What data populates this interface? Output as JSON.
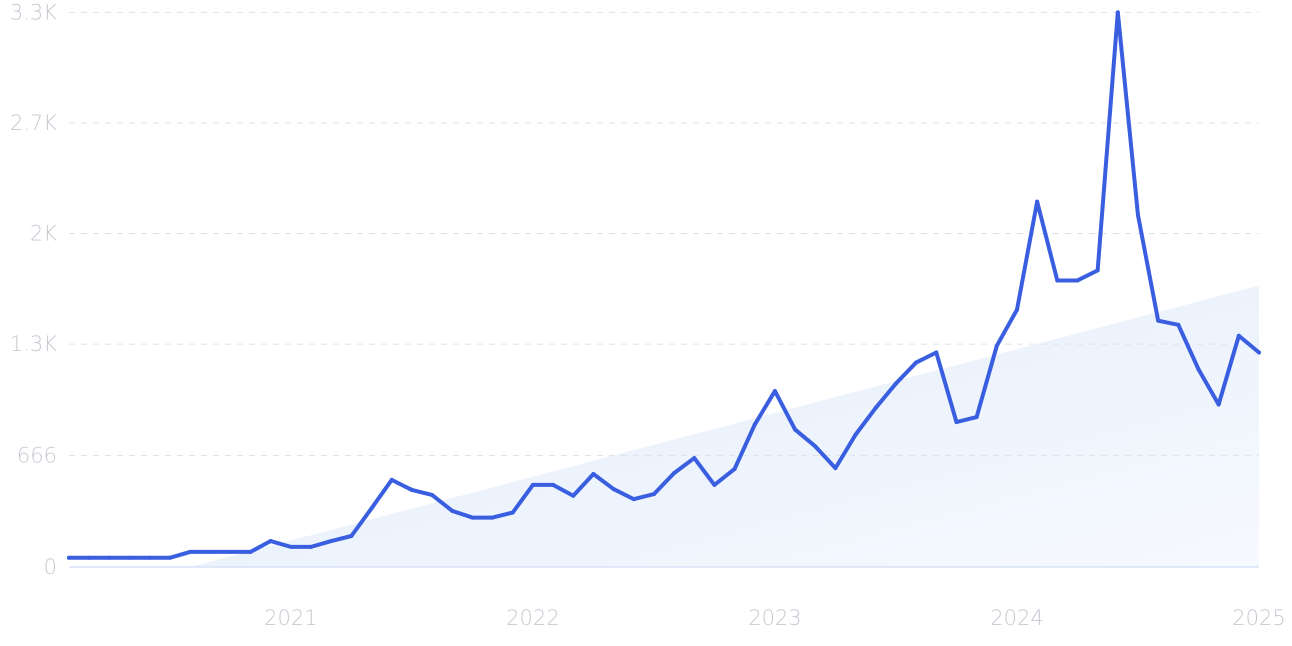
{
  "chart_data": {
    "type": "line",
    "title": "",
    "xlabel": "",
    "ylabel": "",
    "grid": true,
    "ylim": [
      0,
      3300
    ],
    "xlim": [
      "2020-02",
      "2025-01"
    ],
    "y_ticks": [
      {
        "value": 0,
        "label": "0"
      },
      {
        "value": 666,
        "label": "666"
      },
      {
        "value": 1330,
        "label": "1.3K"
      },
      {
        "value": 1990,
        "label": "2K"
      },
      {
        "value": 2650,
        "label": "2.7K"
      },
      {
        "value": 3310,
        "label": "3.3K"
      }
    ],
    "x_ticks": [
      {
        "value": "2021-01",
        "label": "2021"
      },
      {
        "value": "2022-01",
        "label": "2022"
      },
      {
        "value": "2023-01",
        "label": "2023"
      },
      {
        "value": "2024-01",
        "label": "2024"
      },
      {
        "value": "2025-01",
        "label": "2025"
      }
    ],
    "colors": {
      "line": "#3a5ee0",
      "trend_fill_start": "#e3edfb",
      "trend_fill_end": "#f6f9fe",
      "grid": "#dfe1e7",
      "baseline": "#d8e2f5",
      "tick_text": "#c6c9d2"
    },
    "series": [
      {
        "x": [
          "2020-02",
          "2020-03",
          "2020-04",
          "2020-05",
          "2020-06",
          "2020-07",
          "2020-08",
          "2020-09",
          "2020-10",
          "2020-11",
          "2020-12",
          "2021-01",
          "2021-02",
          "2021-03",
          "2021-04",
          "2021-05",
          "2021-06",
          "2021-07",
          "2021-08",
          "2021-09",
          "2021-10",
          "2021-11",
          "2021-12",
          "2022-01",
          "2022-02",
          "2022-03",
          "2022-04",
          "2022-05",
          "2022-06",
          "2022-07",
          "2022-08",
          "2022-09",
          "2022-10",
          "2022-11",
          "2022-12",
          "2023-01",
          "2023-02",
          "2023-03",
          "2023-04",
          "2023-05",
          "2023-06",
          "2023-07",
          "2023-08",
          "2023-09",
          "2023-10",
          "2023-11",
          "2023-12",
          "2024-01",
          "2024-02",
          "2024-03",
          "2024-04",
          "2024-05",
          "2024-06",
          "2024-07",
          "2024-08",
          "2024-09",
          "2024-10",
          "2024-11",
          "2024-12",
          "2025-01"
        ],
        "values": [
          55,
          55,
          55,
          55,
          55,
          55,
          90,
          90,
          90,
          90,
          155,
          120,
          120,
          155,
          185,
          350,
          520,
          460,
          430,
          335,
          295,
          295,
          325,
          490,
          490,
          425,
          555,
          465,
          405,
          435,
          560,
          650,
          490,
          585,
          850,
          1050,
          820,
          720,
          590,
          790,
          950,
          1095,
          1220,
          1280,
          865,
          895,
          1320,
          1535,
          2180,
          1710,
          1710,
          1770,
          3310,
          2100,
          1470,
          1445,
          1180,
          970,
          1380,
          1280
        ]
      }
    ],
    "trend": {
      "start": {
        "x": "2020-08",
        "y": 0
      },
      "end": {
        "x": "2025-01",
        "y": 1680
      }
    }
  }
}
